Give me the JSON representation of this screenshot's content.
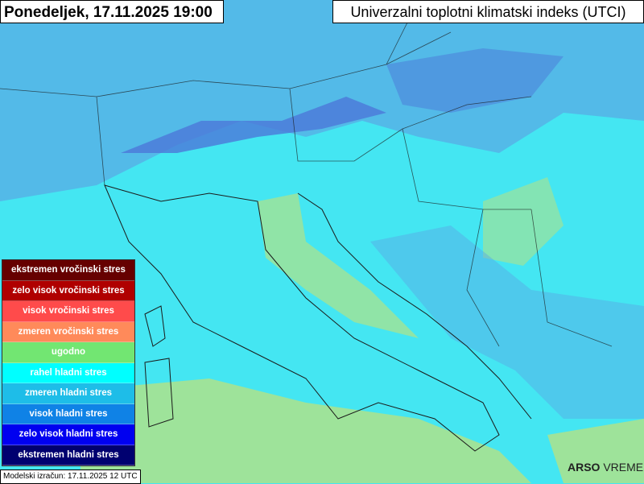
{
  "header": {
    "date_time": "Ponedeljek, 17.11.2025 19:00",
    "title": "Univerzalni toplotni klimatski indeks (UTCI)"
  },
  "legend": {
    "items": [
      {
        "label": "ekstremen vročinski stres",
        "color": "#660000"
      },
      {
        "label": "zelo visok vročinski stres",
        "color": "#b00000"
      },
      {
        "label": "visok vročinski stres",
        "color": "#ff4b4b"
      },
      {
        "label": "zmeren vročinski stres",
        "color": "#ff8a5a"
      },
      {
        "label": "ugodno",
        "color": "#72e672"
      },
      {
        "label": "rahel hladni stres",
        "color": "#00ffff"
      },
      {
        "label": "zmeren hladni stres",
        "color": "#1ebde8"
      },
      {
        "label": "visok hladni stres",
        "color": "#0f82e6"
      },
      {
        "label": "zelo visok hladni stres",
        "color": "#0000f0"
      },
      {
        "label": "ekstremen hladni stres",
        "color": "#000070"
      }
    ]
  },
  "footer": {
    "model_run": "Modelski izračun: 17.11.2025 12 UTC"
  },
  "logo": {
    "brand": "ARSO",
    "product": "VREME"
  },
  "map_colors": {
    "sea": "#44e6f2",
    "comfort": "#9ee39a",
    "cold": "#5aa6e4",
    "very_cold": "#4c78d8",
    "border": "#1a1a1a"
  }
}
